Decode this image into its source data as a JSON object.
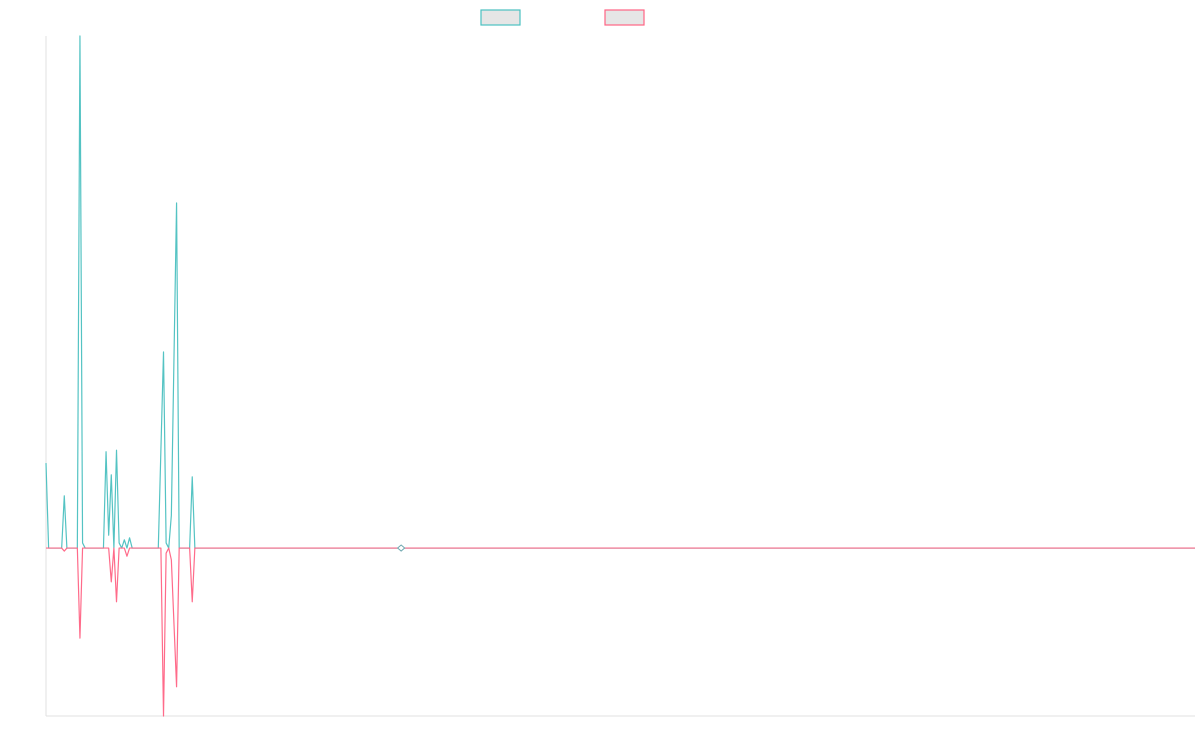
{
  "chart_data": {
    "type": "line",
    "title": "",
    "xlabel": "",
    "ylabel": "",
    "xlim": [
      0,
      440
    ],
    "ylim": [
      -32.8,
      100
    ],
    "grid": false,
    "legend_placement": "top-center",
    "legend_swatch_fill": "#e6e6e6",
    "series": [
      {
        "color": "#4bc0c0",
        "x": [
          0,
          1,
          6,
          7,
          8,
          12,
          13,
          14,
          15,
          22,
          23,
          24,
          25,
          26,
          27,
          28,
          29,
          30,
          31,
          32,
          33,
          43,
          45,
          46,
          47,
          48,
          50,
          51,
          55,
          56,
          57,
          440
        ],
        "values": [
          16.6,
          0,
          0,
          10.2,
          0,
          0,
          100,
          1,
          0,
          0,
          18.8,
          2.5,
          14.3,
          0,
          19.1,
          1,
          0,
          1.6,
          0,
          2,
          0,
          0,
          38.3,
          1,
          0,
          6.4,
          67.4,
          0,
          0,
          13.9,
          0,
          0
        ]
      },
      {
        "color": "#ff6384",
        "x": [
          0,
          6,
          7,
          8,
          12,
          13,
          14,
          24,
          25,
          26,
          27,
          28,
          30,
          31,
          32,
          44,
          45,
          46,
          47,
          48,
          50,
          51,
          55,
          56,
          57,
          440
        ],
        "values": [
          0,
          0,
          -0.6,
          0,
          0,
          -17.6,
          0,
          0,
          -6.6,
          0,
          -10.5,
          0,
          0,
          -1.6,
          0,
          0,
          -32.8,
          -1,
          0,
          -2.3,
          -27.1,
          0,
          0,
          -10.5,
          0,
          0
        ]
      }
    ],
    "highlighted_point": {
      "x": 136,
      "y": 0
    }
  }
}
